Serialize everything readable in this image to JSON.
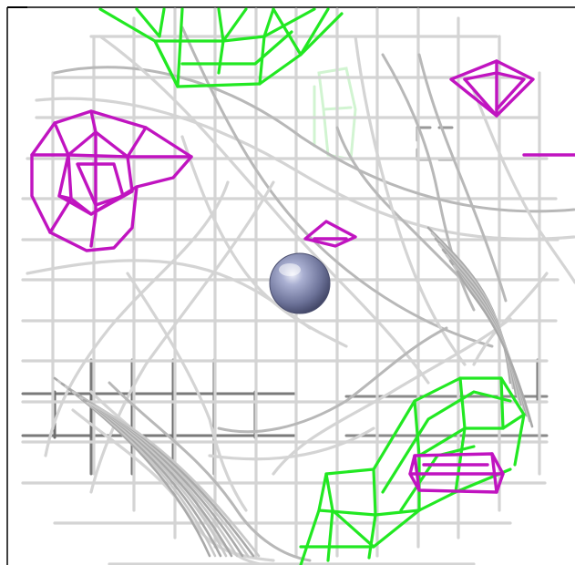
{
  "viewer": {
    "background": "#ffffff",
    "frame_color": "#000000",
    "mesh_colors": {
      "gray_light": "#d4d4d4",
      "gray_mid": "#b8b8b8",
      "gray_dark": "#7a7a7a",
      "green": "#22e822",
      "green_faint": "#c9f5c9",
      "magenta": "#c014c0"
    },
    "atom": {
      "name": "central-sphere",
      "color": "#7a80a8"
    }
  }
}
